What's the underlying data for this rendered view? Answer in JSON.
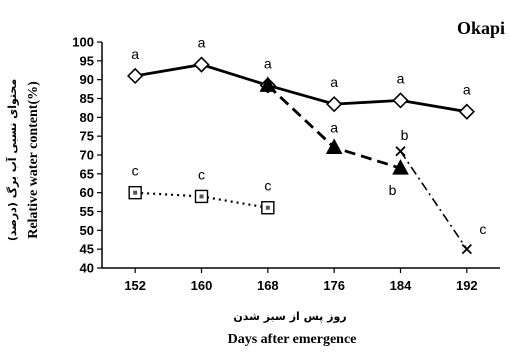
{
  "chart_data": {
    "type": "line",
    "title": "Okapi",
    "xlabel": "Days after emergence",
    "xlabel_persian": "روز پس از سبز شدن",
    "ylabel": "Relative water content(%)",
    "ylabel_persian": "محتوای نسبی آب برگ (درصد)",
    "x_ticks": [
      152,
      160,
      168,
      176,
      184,
      192
    ],
    "y_ticks": [
      40,
      45,
      50,
      55,
      60,
      65,
      70,
      75,
      80,
      85,
      90,
      95,
      100
    ],
    "xlim": [
      148,
      196
    ],
    "ylim": [
      40,
      100
    ],
    "grid": false,
    "series": [
      {
        "marker": "diamond",
        "line": "solid",
        "x": [
          152,
          160,
          168,
          176,
          184,
          192
        ],
        "y": [
          91,
          94,
          88.5,
          83.5,
          84.5,
          81.5
        ],
        "labels": [
          "a",
          "a",
          "a",
          "a",
          "a",
          "a"
        ]
      },
      {
        "marker": "triangle",
        "line": "dashed",
        "x": [
          168,
          176,
          184
        ],
        "y": [
          88.5,
          72,
          66.5
        ],
        "labels": [
          "",
          "a",
          "b"
        ]
      },
      {
        "marker": "cross",
        "line": "dash-dot",
        "x": [
          184,
          192
        ],
        "y": [
          71,
          45
        ],
        "labels": [
          "b",
          "c"
        ]
      },
      {
        "marker": "square",
        "line": "dotted",
        "x": [
          152,
          160,
          168
        ],
        "y": [
          60,
          59,
          56
        ],
        "labels": [
          "c",
          "c",
          "c"
        ]
      }
    ]
  }
}
